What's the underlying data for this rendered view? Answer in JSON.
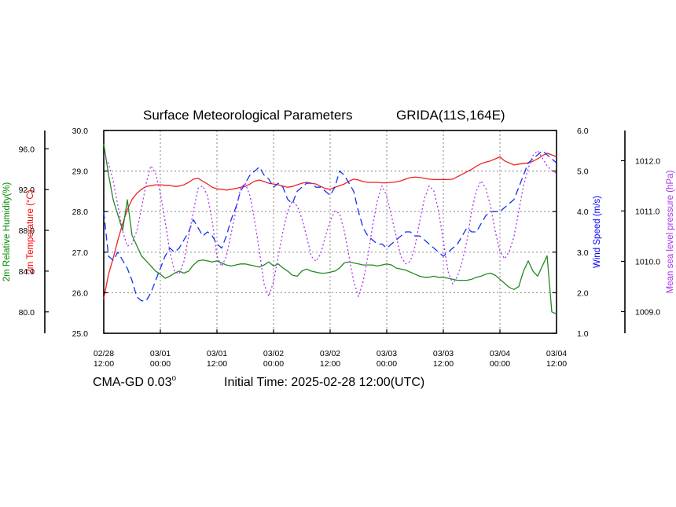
{
  "chart_data": {
    "type": "line",
    "title": "Surface Meteorological Parameters",
    "location": "GRIDA(11S,164E)",
    "model_label": "CMA-GD 0.03",
    "model_label_sup": "o",
    "initial_time": "Initial Time: 2025-02-28 12:00(UTC)",
    "x_tick_labels": [
      [
        "02/28",
        "12:00"
      ],
      [
        "03/01",
        "00:00"
      ],
      [
        "03/01",
        "12:00"
      ],
      [
        "03/02",
        "00:00"
      ],
      [
        "03/02",
        "12:00"
      ],
      [
        "03/03",
        "00:00"
      ],
      [
        "03/03",
        "12:00"
      ],
      [
        "03/04",
        "00:00"
      ],
      [
        "03/04",
        "12:00"
      ]
    ],
    "xlim": [
      0,
      96
    ],
    "grid": true,
    "axes": {
      "temperature": {
        "label": "2m Temperature (°C)",
        "ylim": [
          25.0,
          30.0
        ],
        "ticks": [
          "25.0",
          "26.0",
          "27.0",
          "28.0",
          "29.0",
          "30.0"
        ],
        "color": "#ff0000"
      },
      "humidity": {
        "label": "2m Relative Humidity(%)",
        "ylim": [
          77.9,
          97.8
        ],
        "ticks": [
          "80.0",
          "84.0",
          "88.0",
          "92.0",
          "96.0"
        ],
        "color": "#008800"
      },
      "wind": {
        "label": "Wind Speed (m/s)",
        "ylim": [
          1.0,
          6.0
        ],
        "ticks": [
          "1.0",
          "2.0",
          "3.0",
          "4.0",
          "5.0",
          "6.0"
        ],
        "color": "#0000ff"
      },
      "pressure": {
        "label": "Mean sea level pressure (hPa)",
        "ylim": [
          1008.57,
          1012.6
        ],
        "ticks": [
          "1009.0",
          "1010.0",
          "1011.0",
          "1012.0"
        ],
        "color": "#aa33ee"
      }
    },
    "series": [
      {
        "name": "2m Temperature",
        "axis": "temperature",
        "color": "#ee2222",
        "dash": "",
        "x": [
          0,
          1,
          2,
          3,
          4,
          5,
          6,
          7,
          8,
          9,
          10,
          11,
          12,
          13,
          14,
          15,
          16,
          17,
          18,
          19,
          20,
          21,
          22,
          23,
          24,
          25,
          26,
          27,
          28,
          29,
          30,
          31,
          32,
          33,
          34,
          35,
          36,
          37,
          38,
          39,
          40,
          41,
          42,
          43,
          44,
          45,
          46,
          47,
          48,
          49,
          50,
          51,
          52,
          53,
          54,
          55,
          56,
          57,
          58,
          59,
          60,
          61,
          62,
          63,
          64,
          65,
          66,
          67,
          68,
          69,
          70,
          71,
          72,
          73,
          74,
          75,
          76,
          77,
          78,
          79,
          80,
          81,
          82,
          83,
          84,
          85,
          86,
          87,
          88,
          89,
          90,
          91,
          92,
          93,
          94,
          95,
          96
        ],
        "values": [
          25.85,
          26.45,
          26.85,
          27.3,
          27.7,
          28.05,
          28.3,
          28.45,
          28.55,
          28.62,
          28.64,
          28.66,
          28.66,
          28.65,
          28.65,
          28.62,
          28.63,
          28.66,
          28.72,
          28.8,
          28.82,
          28.75,
          28.68,
          28.6,
          28.56,
          28.55,
          28.53,
          28.55,
          28.57,
          28.6,
          28.62,
          28.68,
          28.75,
          28.78,
          28.74,
          28.7,
          28.68,
          28.66,
          28.63,
          28.6,
          28.62,
          28.66,
          28.7,
          28.72,
          28.7,
          28.68,
          28.62,
          28.57,
          28.55,
          28.6,
          28.64,
          28.68,
          28.75,
          28.8,
          28.78,
          28.74,
          28.72,
          28.72,
          28.72,
          28.71,
          28.71,
          28.72,
          28.73,
          28.76,
          28.8,
          28.84,
          28.85,
          28.84,
          28.82,
          28.8,
          28.79,
          28.79,
          28.79,
          28.79,
          28.8,
          28.86,
          28.92,
          28.98,
          29.04,
          29.12,
          29.18,
          29.22,
          29.25,
          29.3,
          29.35,
          29.25,
          29.2,
          29.15,
          29.17,
          29.19,
          29.2,
          29.24,
          29.3,
          29.38,
          29.44,
          29.4,
          29.35
        ]
      },
      {
        "name": "2m Relative Humidity",
        "axis": "humidity",
        "color": "#228822",
        "dash": "",
        "x": [
          0,
          1,
          2,
          3,
          4,
          5,
          6,
          7,
          8,
          9,
          10,
          11,
          12,
          13,
          14,
          15,
          16,
          17,
          18,
          19,
          20,
          21,
          22,
          23,
          24,
          25,
          26,
          27,
          28,
          29,
          30,
          31,
          32,
          33,
          34,
          35,
          36,
          37,
          38,
          39,
          40,
          41,
          42,
          43,
          44,
          45,
          46,
          47,
          48,
          49,
          50,
          51,
          52,
          53,
          54,
          55,
          56,
          57,
          58,
          59,
          60,
          61,
          62,
          63,
          64,
          65,
          66,
          67,
          68,
          69,
          70,
          71,
          72,
          73,
          74,
          75,
          76,
          77,
          78,
          79,
          80,
          81,
          82,
          83,
          84,
          85,
          86,
          87,
          88,
          89,
          90,
          91,
          92,
          93,
          94,
          95,
          96
        ],
        "values": [
          96.5,
          93.5,
          91.0,
          89.5,
          88.0,
          91.0,
          87.5,
          86.5,
          85.5,
          85.0,
          84.5,
          84.0,
          83.7,
          83.3,
          83.5,
          83.8,
          84.0,
          83.8,
          84.0,
          84.6,
          85.0,
          85.1,
          85.0,
          84.9,
          85.0,
          84.8,
          84.6,
          84.5,
          84.6,
          84.7,
          84.7,
          84.6,
          84.5,
          84.4,
          84.6,
          84.9,
          84.5,
          84.7,
          84.3,
          84.0,
          83.6,
          83.5,
          84.0,
          84.2,
          84.0,
          83.9,
          83.8,
          83.8,
          83.9,
          84.0,
          84.3,
          84.8,
          84.9,
          84.8,
          84.7,
          84.6,
          84.6,
          84.6,
          84.5,
          84.6,
          84.7,
          84.6,
          84.3,
          84.2,
          84.1,
          83.9,
          83.7,
          83.5,
          83.4,
          83.4,
          83.5,
          83.4,
          83.4,
          83.3,
          83.2,
          83.1,
          83.1,
          83.1,
          83.2,
          83.4,
          83.5,
          83.7,
          83.8,
          83.6,
          83.2,
          82.8,
          82.4,
          82.2,
          82.5,
          84.0,
          85.0,
          84.0,
          83.5,
          84.5,
          85.5,
          80.0,
          79.8
        ]
      },
      {
        "name": "Wind Speed",
        "axis": "wind",
        "color": "#1133ee",
        "dash": "9 5",
        "x": [
          0,
          1,
          2,
          3,
          4,
          5,
          6,
          7,
          8,
          9,
          10,
          11,
          12,
          13,
          14,
          15,
          16,
          17,
          18,
          19,
          20,
          21,
          22,
          23,
          24,
          25,
          26,
          27,
          28,
          29,
          30,
          31,
          32,
          33,
          34,
          35,
          36,
          37,
          38,
          39,
          40,
          41,
          42,
          43,
          44,
          45,
          46,
          47,
          48,
          49,
          50,
          51,
          52,
          53,
          54,
          55,
          56,
          57,
          58,
          59,
          60,
          61,
          62,
          63,
          64,
          65,
          66,
          67,
          68,
          69,
          70,
          71,
          72,
          73,
          74,
          75,
          76,
          77,
          78,
          79,
          80,
          81,
          82,
          83,
          84,
          85,
          86,
          87,
          88,
          89,
          90,
          91,
          92,
          93,
          94,
          95,
          96
        ],
        "values": [
          4.0,
          2.9,
          2.8,
          3.0,
          2.8,
          2.6,
          2.3,
          1.9,
          1.8,
          1.8,
          2.0,
          2.3,
          2.6,
          2.9,
          3.1,
          3.0,
          3.1,
          3.3,
          3.5,
          3.8,
          3.6,
          3.4,
          3.5,
          3.4,
          3.2,
          3.1,
          3.4,
          3.8,
          4.1,
          4.5,
          4.7,
          4.9,
          5.0,
          5.1,
          4.9,
          4.8,
          4.6,
          4.7,
          4.6,
          4.3,
          4.2,
          4.5,
          4.6,
          4.7,
          4.7,
          4.6,
          4.6,
          4.5,
          4.4,
          4.6,
          5.0,
          4.9,
          4.7,
          4.5,
          4.0,
          3.6,
          3.4,
          3.3,
          3.2,
          3.2,
          3.1,
          3.2,
          3.3,
          3.4,
          3.5,
          3.5,
          3.4,
          3.4,
          3.3,
          3.2,
          3.1,
          3.0,
          2.9,
          3.0,
          3.1,
          3.2,
          3.4,
          3.6,
          3.5,
          3.5,
          3.7,
          3.9,
          4.0,
          4.0,
          4.0,
          4.1,
          4.2,
          4.3,
          4.6,
          4.9,
          5.2,
          5.3,
          5.4,
          5.5,
          5.4,
          5.3,
          5.2
        ]
      },
      {
        "name": "Mean sea level pressure",
        "axis": "pressure",
        "color": "#aa33ee",
        "dash": "2 3",
        "x": [
          0,
          1,
          2,
          3,
          4,
          5,
          6,
          7,
          8,
          9,
          10,
          11,
          12,
          13,
          14,
          15,
          16,
          17,
          18,
          19,
          20,
          21,
          22,
          23,
          24,
          25,
          26,
          27,
          28,
          29,
          30,
          31,
          32,
          33,
          34,
          35,
          36,
          37,
          38,
          39,
          40,
          41,
          42,
          43,
          44,
          45,
          46,
          47,
          48,
          49,
          50,
          51,
          52,
          53,
          54,
          55,
          56,
          57,
          58,
          59,
          60,
          61,
          62,
          63,
          64,
          65,
          66,
          67,
          68,
          69,
          70,
          71,
          72,
          73,
          74,
          75,
          76,
          77,
          78,
          79,
          80,
          81,
          82,
          83,
          84,
          85,
          86,
          87,
          88,
          89,
          90,
          91,
          92,
          93,
          94,
          95,
          96
        ],
        "values": [
          1012.1,
          1011.95,
          1011.6,
          1011.1,
          1010.6,
          1010.3,
          1010.35,
          1010.6,
          1011.05,
          1011.55,
          1011.9,
          1011.75,
          1011.35,
          1010.8,
          1010.2,
          1009.8,
          1009.75,
          1010.0,
          1010.5,
          1011.0,
          1011.45,
          1011.5,
          1011.3,
          1010.8,
          1010.1,
          1009.9,
          1010.1,
          1010.55,
          1011.0,
          1011.45,
          1011.55,
          1011.3,
          1010.8,
          1010.2,
          1009.55,
          1009.3,
          1009.6,
          1010.1,
          1010.6,
          1011.0,
          1011.2,
          1011.1,
          1010.85,
          1010.5,
          1010.1,
          1010.0,
          1010.15,
          1010.5,
          1010.8,
          1011.0,
          1010.95,
          1010.6,
          1010.1,
          1009.6,
          1009.3,
          1009.6,
          1010.1,
          1010.7,
          1011.2,
          1011.5,
          1011.3,
          1010.9,
          1010.5,
          1010.1,
          1009.95,
          1010.0,
          1010.3,
          1010.8,
          1011.25,
          1011.5,
          1011.4,
          1011.0,
          1010.4,
          1009.8,
          1009.55,
          1009.7,
          1010.0,
          1010.4,
          1011.0,
          1011.4,
          1011.6,
          1011.45,
          1011.1,
          1010.6,
          1010.2,
          1010.05,
          1010.2,
          1010.5,
          1011.0,
          1011.5,
          1011.85,
          1012.1,
          1012.2,
          1012.05,
          1011.9,
          1011.8,
          1011.75
        ]
      }
    ]
  }
}
